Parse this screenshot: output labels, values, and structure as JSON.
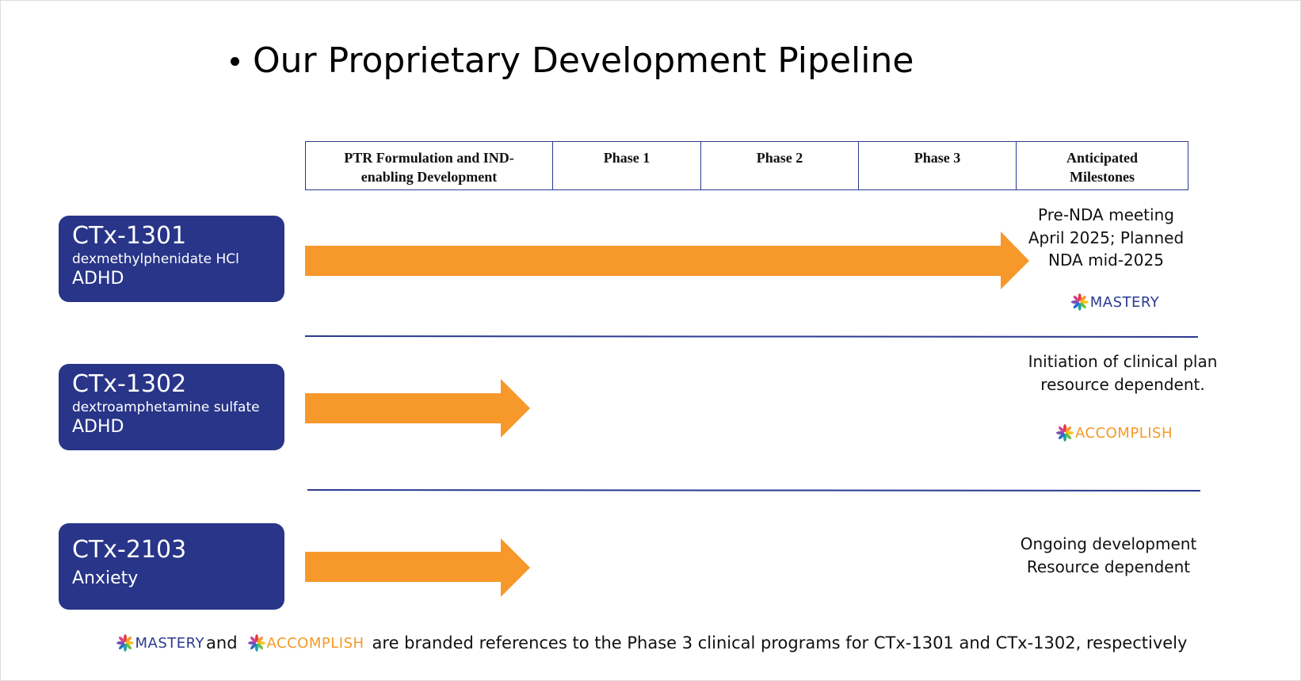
{
  "title": "Our Proprietary Development Pipeline",
  "columns": [
    "PTR Formulation and IND-enabling Development",
    "Phase 1",
    "Phase 2",
    "Phase 3",
    "Anticipated Milestones"
  ],
  "programs": [
    {
      "name": "CTx-1301",
      "drug": "dexmethylphenidate HCl",
      "indication": "ADHD",
      "milestone": [
        "Pre-NDA meeting",
        "April 2025; Planned",
        "NDA mid-2025"
      ],
      "logo": "MASTERY"
    },
    {
      "name": "CTx-1302",
      "drug": "dextroamphetamine sulfate",
      "indication": "ADHD",
      "milestone": [
        "Initiation of clinical plan",
        "resource dependent."
      ],
      "logo": "ACCOMPLISH"
    },
    {
      "name": "CTx-2103",
      "indication": "Anxiety",
      "milestone": [
        "Ongoing development",
        "Resource dependent"
      ]
    }
  ],
  "footnote": {
    "logo1": "MASTERY",
    "joiner": "and",
    "logo2": "ACCOMPLISH",
    "text": "are branded references to the Phase 3 clinical programs for CTx-1301 and CTx-1302, respectively"
  }
}
